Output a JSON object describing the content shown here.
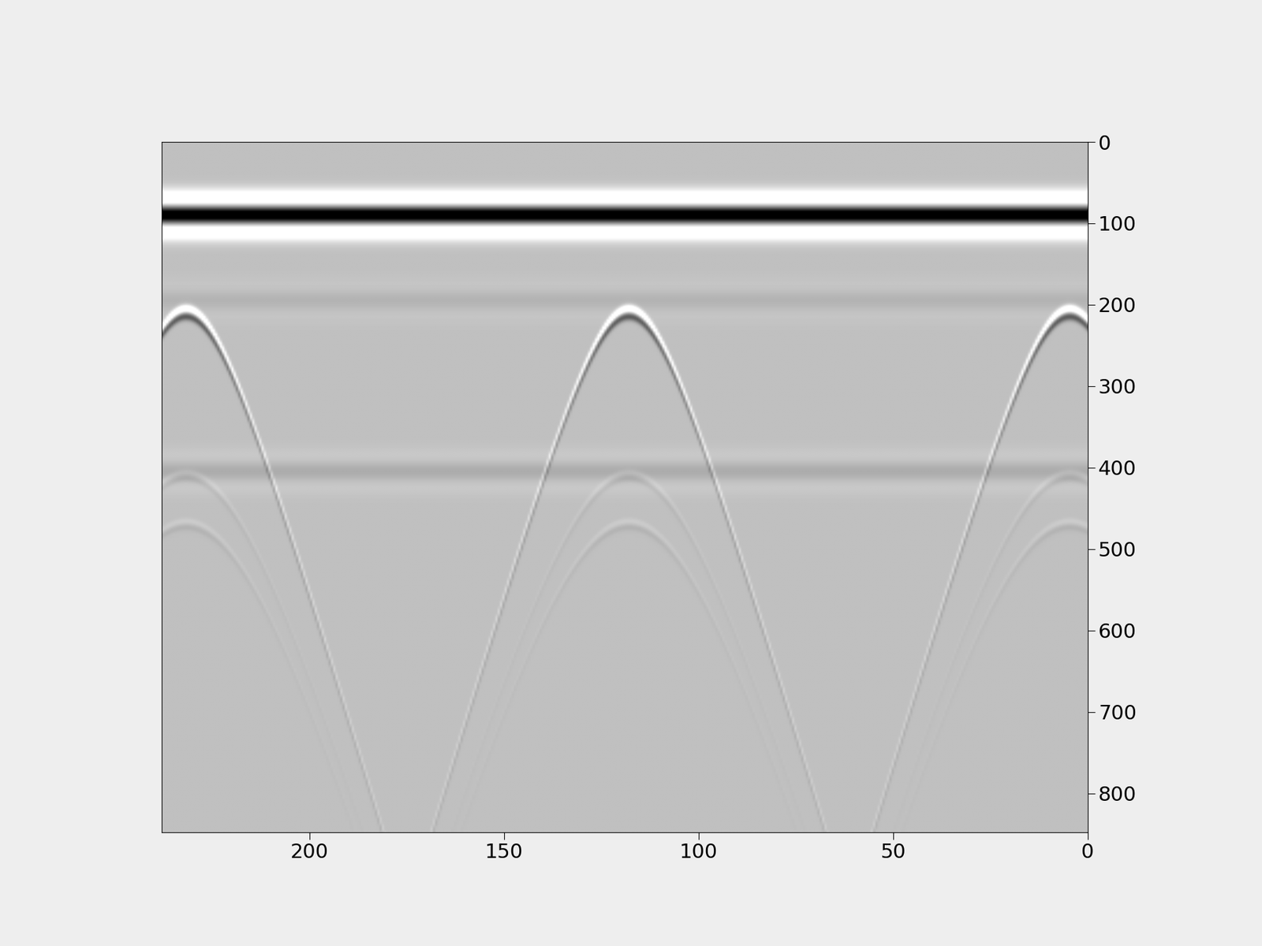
{
  "chart_data": {
    "type": "image",
    "color": "gray",
    "xlim": [
      238,
      0
    ],
    "ylim": [
      848,
      0
    ],
    "xticks": [
      0,
      50,
      100,
      150,
      200
    ],
    "yticks": [
      0,
      100,
      200,
      300,
      400,
      500,
      600,
      700,
      800
    ],
    "reflectors": [
      {
        "y": 90,
        "strength": 1.2
      },
      {
        "y": 195,
        "strength": 0.06
      },
      {
        "y": 405,
        "strength": 0.1
      }
    ],
    "targets": [
      {
        "apex_x": 4.5,
        "apex_y": 210,
        "limb_x": 25.5,
        "limb_y": 400
      },
      {
        "apex_x": 118,
        "apex_y": 210,
        "limb_x": 139,
        "limb_y": 400
      },
      {
        "apex_x": 232,
        "apex_y": 210,
        "limb_x": 211,
        "limb_y": 400
      }
    ]
  }
}
